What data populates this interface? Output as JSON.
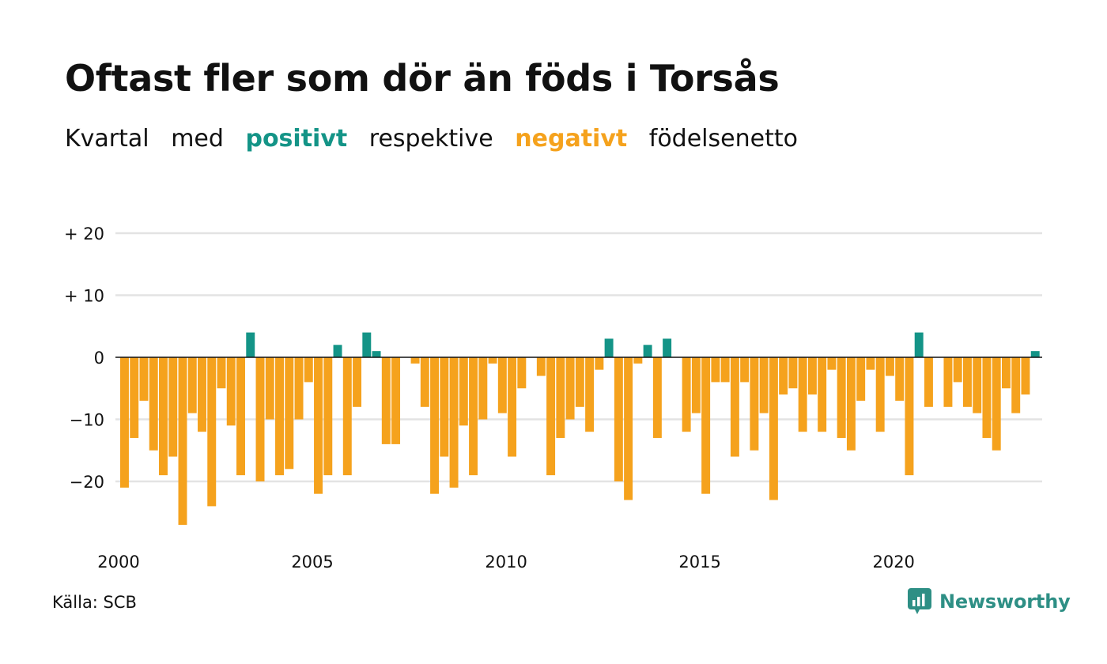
{
  "title": "Oftast fler som dör än föds i Torsås",
  "subtitle": {
    "w1": "Kvartal",
    "w2": "med",
    "positive": "positivt",
    "w3": "respektive",
    "negative": "negativt",
    "w4": "födelsenetto"
  },
  "source": "Källa: SCB",
  "brand": "Newsworthy",
  "colors": {
    "positive": "#149487",
    "negative": "#f5a21d",
    "grid": "#e3e3e3",
    "zero": "#111111"
  },
  "chart_data": {
    "type": "bar",
    "x_start": 2000,
    "x_step": 0.25,
    "values": [
      -21,
      -13,
      -7,
      -15,
      -19,
      -16,
      -27,
      -9,
      -12,
      -24,
      -5,
      -11,
      -19,
      4,
      -20,
      -10,
      -19,
      -18,
      -10,
      -4,
      -22,
      -19,
      2,
      -19,
      -8,
      4,
      1,
      -14,
      -14,
      0,
      -1,
      -8,
      -22,
      -16,
      -21,
      -11,
      -19,
      -10,
      -1,
      -9,
      -16,
      -5,
      0,
      -3,
      -19,
      -13,
      -10,
      -8,
      -12,
      -2,
      3,
      -20,
      -23,
      -1,
      2,
      -13,
      3,
      0,
      -12,
      -9,
      -22,
      -4,
      -4,
      -16,
      -4,
      -15,
      -9,
      -23,
      -6,
      -5,
      -12,
      -6,
      -12,
      -2,
      -13,
      -15,
      -7,
      -2,
      -12,
      -3,
      -7,
      -19,
      4,
      -8,
      0,
      -8,
      -4,
      -8,
      -9,
      -13,
      -15,
      -5,
      -9,
      -6,
      1
    ],
    "yticks": [
      20,
      10,
      0,
      -10,
      -20
    ],
    "ytick_labels": [
      "+ 20",
      "+ 10",
      "0",
      "−10",
      "−20"
    ],
    "xticks": [
      2000,
      2005,
      2010,
      2015,
      2020
    ],
    "xtick_labels": [
      "2000",
      "2005",
      "2010",
      "2015",
      "2020"
    ],
    "xlim": [
      2000,
      2023.75
    ],
    "ylim": [
      -28,
      20
    ],
    "grid": true
  }
}
